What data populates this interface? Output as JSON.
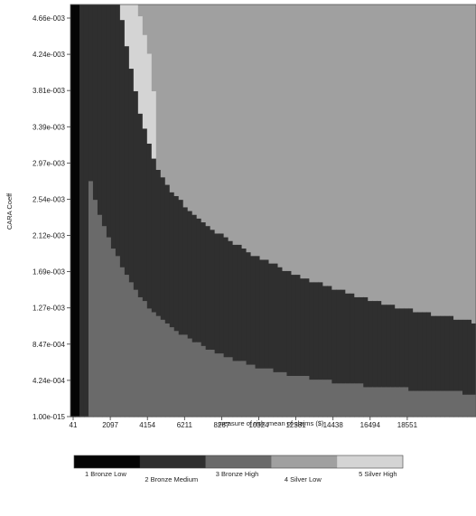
{
  "chart_data": {
    "type": "heatmap",
    "title": "",
    "xlabel": "measure of risk: mean of claims ($)",
    "ylabel": "CARA Coeff",
    "x_ticks": [
      "41",
      "2097",
      "4154",
      "6211",
      "8267",
      "10324",
      "12381",
      "14438",
      "16494",
      "18551"
    ],
    "y_ticks": [
      "1.00e-015",
      "4.24e-004",
      "8.47e-004",
      "1.27e-003",
      "1.69e-003",
      "2.12e-003",
      "2.54e-003",
      "2.97e-003",
      "3.39e-003",
      "3.81e-003",
      "4.24e-003",
      "4.66e-003"
    ],
    "xlim": [
      41,
      20200
    ],
    "ylim": [
      0,
      0.0049
    ],
    "grid": false,
    "legend_position": "bottom",
    "categories": [
      {
        "code": 1,
        "label": "1 Bronze Low",
        "color": "#050505"
      },
      {
        "code": 2,
        "label": "2 Bronze Medium",
        "color": "#2f2f2f"
      },
      {
        "code": 3,
        "label": "3 Bronze High",
        "color": "#6a6a6a"
      },
      {
        "code": 4,
        "label": "4 Silver Low",
        "color": "#a0a0a0"
      },
      {
        "code": 5,
        "label": "5 Silver High",
        "color": "#d4d4d4"
      }
    ],
    "region_boundaries": {
      "x": [
        41,
        600,
        1000,
        1500,
        2000,
        2500,
        3000,
        3500,
        4000,
        4500,
        5000,
        6000,
        7000,
        8000,
        9000,
        10000,
        11000,
        12000,
        13000,
        14000,
        15000,
        16000,
        17000,
        18000,
        19000,
        20200
      ],
      "bronze_low_max_y": [
        0.00055,
        0.00055,
        0.0,
        0.0,
        0.0,
        0.0,
        0.0,
        0.0,
        0.0,
        0.0,
        0.0,
        0.0,
        0.0,
        0.0,
        0.0,
        0.0,
        0.0,
        0.0,
        0.0,
        0.0,
        0.0,
        0.0,
        0.0,
        0.0,
        0.0,
        0.0
      ],
      "bronze_high_max_y": [
        0.0049,
        0.0049,
        0.00285,
        0.0024,
        0.0021,
        0.00185,
        0.00163,
        0.00145,
        0.0013,
        0.00118,
        0.00108,
        0.00092,
        0.0008,
        0.0007,
        0.00062,
        0.00056,
        0.0005,
        0.00046,
        0.00042,
        0.00039,
        0.00037,
        0.00035,
        0.00033,
        0.00031,
        0.0003,
        0.00028
      ],
      "bronze_medium_max_y": [
        0.0049,
        0.0049,
        0.0049,
        0.0049,
        0.0049,
        0.0049,
        0.0042,
        0.0036,
        0.0032,
        0.0029,
        0.0027,
        0.00245,
        0.00225,
        0.0021,
        0.00195,
        0.00183,
        0.00172,
        0.00162,
        0.00154,
        0.00146,
        0.00139,
        0.00133,
        0.00127,
        0.00122,
        0.00118,
        0.00113
      ],
      "silver_high_max_y": [
        0.0049,
        0.0049,
        0.0049,
        0.0049,
        0.0049,
        0.0049,
        0.0049,
        0.0049,
        0.0049,
        0.0049,
        0.0049,
        0.0049,
        0.0049,
        0.0049,
        0.0049,
        0.0049,
        0.0049,
        0.0049,
        0.0049,
        0.0049,
        0.0049,
        0.0049,
        0.0049,
        0.0049,
        0.0049,
        0.0049
      ],
      "silver_high_band": {
        "x": [
          1500,
          2000,
          2500,
          3000,
          3500,
          4000,
          4300
        ],
        "y_low": [
          0.0049,
          0.0049,
          0.0049,
          0.0042,
          0.0036,
          0.0032,
          0.003
        ],
        "y_high": [
          0.0049,
          0.0049,
          0.0049,
          0.0049,
          0.0045,
          0.004,
          0.0033
        ]
      }
    }
  }
}
